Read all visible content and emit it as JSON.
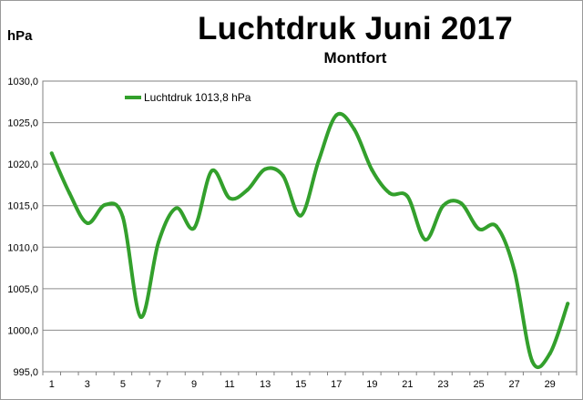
{
  "chart_data": {
    "type": "line",
    "title": "Luchtdruk Juni 2017",
    "subtitle": "Montfort",
    "ylabel": "hPa",
    "xlabel": "",
    "x": [
      1,
      2,
      3,
      4,
      5,
      6,
      7,
      8,
      9,
      10,
      11,
      12,
      13,
      14,
      15,
      16,
      17,
      18,
      19,
      20,
      21,
      22,
      23,
      24,
      25,
      26,
      27,
      28,
      29,
      30
    ],
    "x_tick_labels": [
      "1",
      "3",
      "5",
      "7",
      "9",
      "11",
      "13",
      "15",
      "17",
      "19",
      "21",
      "23",
      "25",
      "27",
      "29"
    ],
    "ylim": [
      995.0,
      1030.0
    ],
    "y_tick_labels": [
      "995,0",
      "1000,0",
      "1005,0",
      "1010,0",
      "1015,0",
      "1020,0",
      "1025,0",
      "1030,0"
    ],
    "grid": true,
    "legend_position": "top-left",
    "color": "#33a02c",
    "series": [
      {
        "name": "Luchtdruk 1013,8 hPa",
        "values": [
          1021.3,
          1016.5,
          1012.9,
          1015.1,
          1013.6,
          1001.6,
          1010.6,
          1014.7,
          1012.3,
          1019.2,
          1015.9,
          1016.9,
          1019.4,
          1018.6,
          1013.8,
          1020.4,
          1025.9,
          1024.2,
          1019.3,
          1016.5,
          1016.1,
          1010.9,
          1015.0,
          1015.3,
          1012.2,
          1012.5,
          1007.2,
          996.3,
          997.2,
          1003.2
        ]
      }
    ]
  }
}
